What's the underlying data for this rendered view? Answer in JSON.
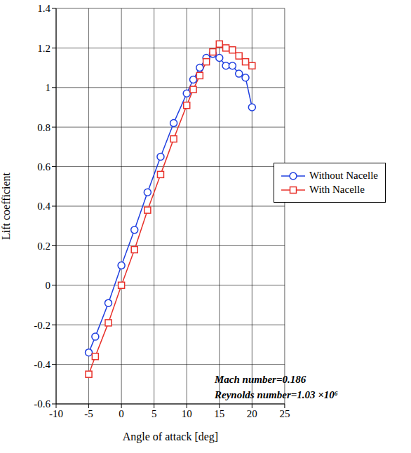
{
  "chart_data": {
    "type": "line",
    "x_label": "Angle of attack [deg]",
    "y_label": "Lift coefficient",
    "x": [
      -5,
      -4,
      -2,
      0,
      2,
      4,
      6,
      8,
      10,
      11,
      12,
      13,
      14,
      15,
      16,
      17,
      18,
      19,
      20
    ],
    "series": [
      {
        "name": "Without Nacelle",
        "color": "#1f3fe0",
        "marker": "circle",
        "values": [
          -0.34,
          -0.26,
          -0.09,
          0.1,
          0.28,
          0.47,
          0.65,
          0.82,
          0.97,
          1.04,
          1.1,
          1.15,
          1.17,
          1.15,
          1.11,
          1.11,
          1.07,
          1.05,
          0.9
        ]
      },
      {
        "name": "With Nacelle",
        "color": "#e8312a",
        "marker": "square",
        "values": [
          -0.45,
          -0.36,
          -0.19,
          0.0,
          0.18,
          0.38,
          0.56,
          0.74,
          0.91,
          0.99,
          1.06,
          1.13,
          1.18,
          1.22,
          1.2,
          1.19,
          1.16,
          1.13,
          1.11
        ]
      }
    ],
    "xlim": [
      -10,
      25
    ],
    "xticks": [
      -10,
      -5,
      0,
      5,
      10,
      15,
      20,
      25
    ],
    "ylim": [
      -0.6,
      1.4
    ],
    "yticks": [
      -0.6,
      -0.4,
      -0.2,
      0,
      0.2,
      0.4,
      0.6,
      0.8,
      1,
      1.2,
      1.4
    ],
    "grid": true,
    "legend": "right",
    "annotations": [
      "Mach number=0.186",
      "Reynolds number=1.03 ×10⁶"
    ]
  }
}
